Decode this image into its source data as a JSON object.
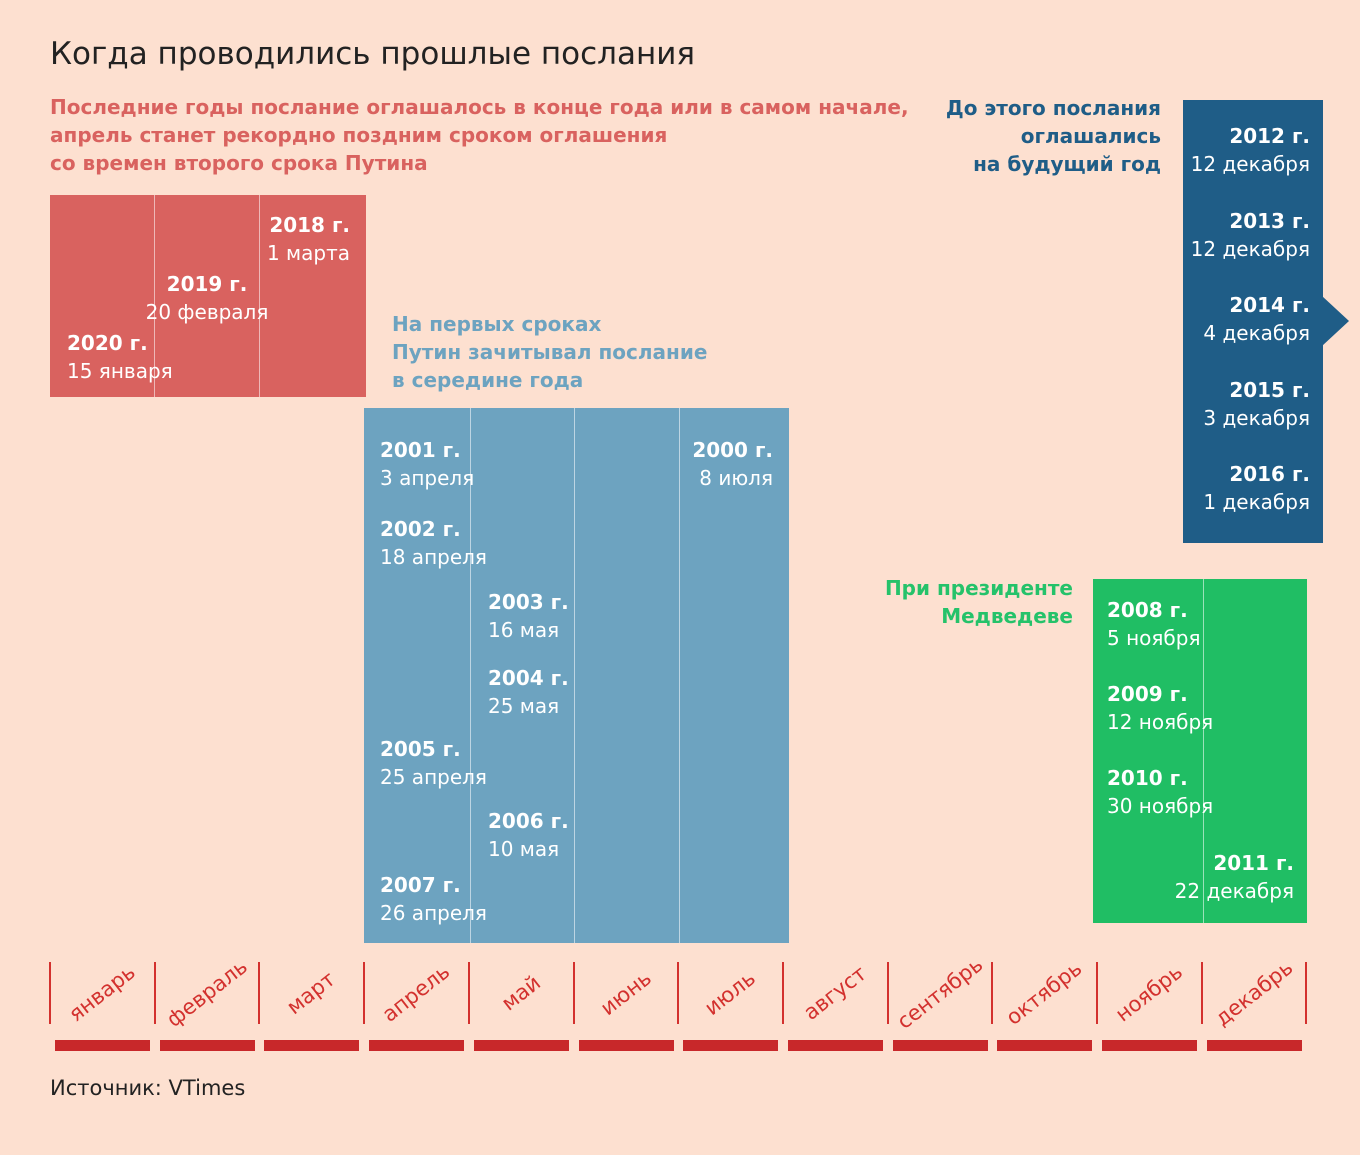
{
  "title": "Когда проводились прошлые послания",
  "subtitle": "Последние годы послание оглашалось в конце года или в самом начале,\nапрель станет рекордно поздним сроком оглашения\nсо времен второго срока Путина",
  "notes": {
    "first_terms": "На первых сроках\nПутин зачитывал послание\nв середине года",
    "future_year": "До этого послания\nоглашались\nна будущий год",
    "medvedev": "При президенте\nМедведеве"
  },
  "months": [
    "январь",
    "февраль",
    "март",
    "апрель",
    "май",
    "июнь",
    "июль",
    "август",
    "сентябрь",
    "октябрь",
    "ноябрь",
    "декабрь"
  ],
  "groups": {
    "recent": [
      {
        "year": "2018 г.",
        "date": "1 марта"
      },
      {
        "year": "2019 г.",
        "date": "20 февраля"
      },
      {
        "year": "2020 г.",
        "date": "15 января"
      }
    ],
    "putin_first": [
      {
        "year": "2001 г.",
        "date": "3 апреля"
      },
      {
        "year": "2000 г.",
        "date": "8 июля"
      },
      {
        "year": "2002 г.",
        "date": "18 апреля"
      },
      {
        "year": "2003 г.",
        "date": "16 мая"
      },
      {
        "year": "2004 г.",
        "date": "25 мая"
      },
      {
        "year": "2005 г.",
        "date": "25 апреля"
      },
      {
        "year": "2006 г.",
        "date": "10 мая"
      },
      {
        "year": "2007 г.",
        "date": "26 апреля"
      }
    ],
    "december": [
      {
        "year": "2012 г.",
        "date": "12 декабря"
      },
      {
        "year": "2013 г.",
        "date": "12 декабря"
      },
      {
        "year": "2014 г.",
        "date": "4 декабря"
      },
      {
        "year": "2015 г.",
        "date": "3 декабря"
      },
      {
        "year": "2016 г.",
        "date": "1 декабря"
      }
    ],
    "medvedev": [
      {
        "year": "2008 г.",
        "date": "5 ноября"
      },
      {
        "year": "2009 г.",
        "date": "12 ноября"
      },
      {
        "year": "2010 г.",
        "date": "30 ноября"
      },
      {
        "year": "2011 г.",
        "date": "22 декабря"
      }
    ]
  },
  "colors": {
    "background": "#fde0d0",
    "recent": "#d9625f",
    "putin_first": "#6da3c0",
    "december": "#1f5d87",
    "medvedev": "#20be64",
    "timeline": "#c8282a"
  },
  "source": "Источник: VTimes"
}
